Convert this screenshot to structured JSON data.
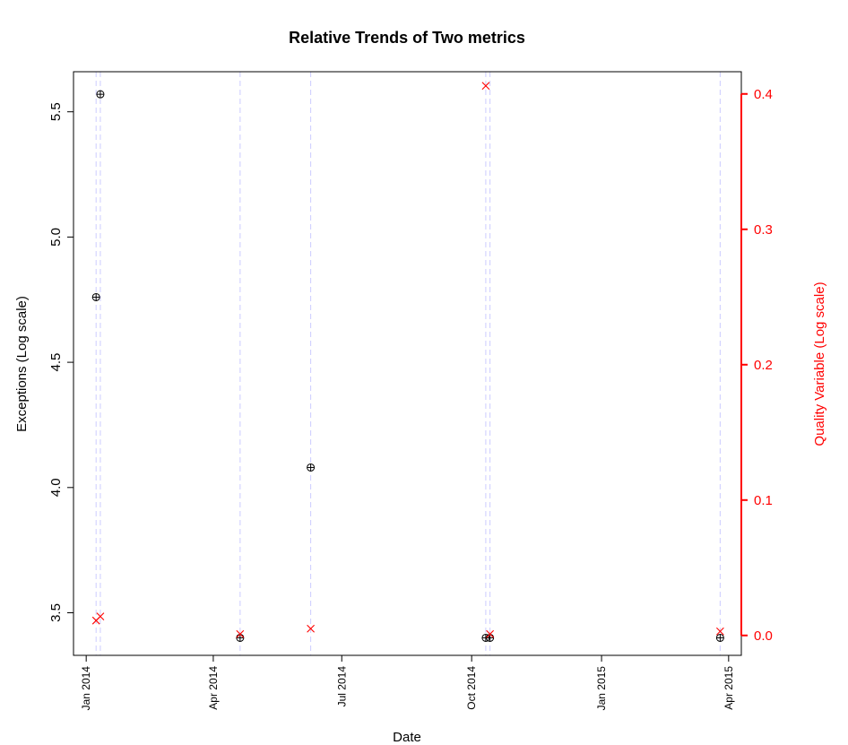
{
  "chart_data": {
    "type": "scatter",
    "title": "Relative Trends of Two metrics",
    "xlabel": "Date",
    "ylabel_left": "Exceptions (Log scale)",
    "ylabel_right": "Quality Variable (Log scale)",
    "colors": {
      "left": "#000000",
      "right": "#ff0000",
      "guide": "#ccccff"
    },
    "x_ticks": [
      {
        "label": "Jan 2014",
        "date": "2014-01-01"
      },
      {
        "label": "Apr 2014",
        "date": "2014-04-01"
      },
      {
        "label": "Jul 2014",
        "date": "2014-07-01"
      },
      {
        "label": "Oct 2014",
        "date": "2014-10-01"
      },
      {
        "label": "Jan 2015",
        "date": "2015-01-01"
      },
      {
        "label": "Apr 2015",
        "date": "2015-04-01"
      }
    ],
    "y_left_ticks": [
      "3.5",
      "4.0",
      "4.5",
      "5.0",
      "5.5"
    ],
    "y_right_ticks": [
      "0.0",
      "0.1",
      "0.2",
      "0.3",
      "0.4"
    ],
    "guide_dates": [
      "2014-01-08",
      "2014-01-11",
      "2014-04-20",
      "2014-06-09",
      "2014-10-11",
      "2014-10-14",
      "2015-03-26"
    ],
    "series": [
      {
        "name": "",
        "axis": "left",
        "marker": "circle-plus",
        "points": [
          {
            "x": "2014-01-08",
            "y": 4.76
          },
          {
            "x": "2014-01-11",
            "y": 5.57
          },
          {
            "x": "2014-04-20",
            "y": 3.4
          },
          {
            "x": "2014-06-09",
            "y": 4.08
          },
          {
            "x": "2014-10-11",
            "y": 3.4
          },
          {
            "x": "2014-10-14",
            "y": 3.4
          },
          {
            "x": "2015-03-26",
            "y": 3.4
          }
        ]
      },
      {
        "name": "",
        "axis": "right",
        "marker": "x",
        "points": [
          {
            "x": "2014-01-08",
            "y": 0.011
          },
          {
            "x": "2014-01-11",
            "y": 0.014
          },
          {
            "x": "2014-04-20",
            "y": 0.001
          },
          {
            "x": "2014-06-09",
            "y": 0.005
          },
          {
            "x": "2014-10-11",
            "y": 0.406
          },
          {
            "x": "2014-10-14",
            "y": 0.001
          },
          {
            "x": "2015-03-26",
            "y": 0.003
          }
        ]
      }
    ],
    "xlim": [
      "2013-12-23",
      "2015-04-10"
    ],
    "ylim_left": [
      3.33,
      5.66
    ],
    "ylim_right": [
      -0.0147,
      0.4164
    ]
  }
}
